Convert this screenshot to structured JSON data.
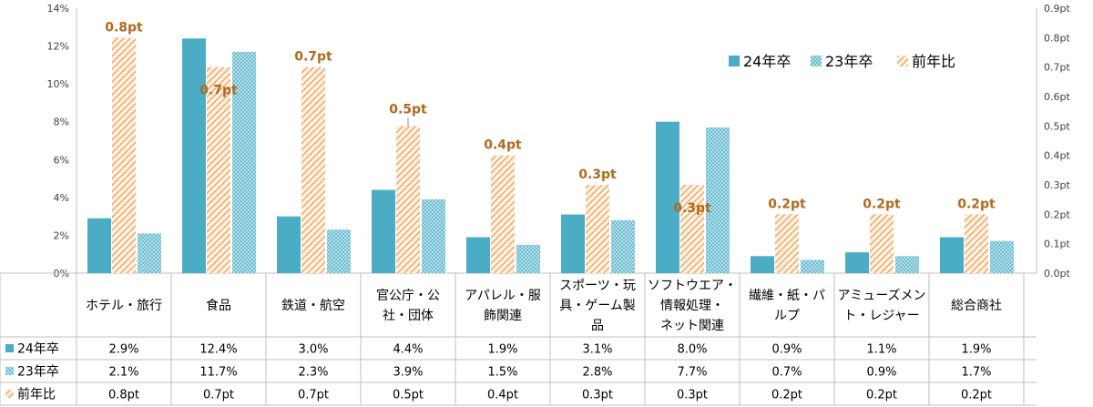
{
  "chart_data": {
    "type": "bar",
    "categories": [
      [
        "ホテル・旅行"
      ],
      [
        "食品"
      ],
      [
        "鉄道・航空"
      ],
      [
        "官公庁・公",
        "社・団体"
      ],
      [
        "アパレル・服",
        "飾関連"
      ],
      [
        "スポーツ・玩",
        "具・ゲーム製",
        "品"
      ],
      [
        "ソフトウエア・",
        "情報処理・",
        "ネット関連"
      ],
      [
        "繊維・紙・パ",
        "ルプ"
      ],
      [
        "アミューズメン",
        "ト・レジャー"
      ],
      [
        "総合商社"
      ]
    ],
    "series": [
      {
        "name": "24年卒",
        "axis": "left",
        "values": [
          2.9,
          12.4,
          3.0,
          4.4,
          1.9,
          3.1,
          8.0,
          0.9,
          1.1,
          1.9
        ],
        "labels": [
          "2.9%",
          "12.4%",
          "3.0%",
          "4.4%",
          "1.9%",
          "3.1%",
          "8.0%",
          "0.9%",
          "1.1%",
          "1.9%"
        ],
        "color": "#4bacc6"
      },
      {
        "name": "23年卒",
        "axis": "left",
        "values": [
          2.1,
          11.7,
          2.3,
          3.9,
          1.5,
          2.8,
          7.7,
          0.7,
          0.9,
          1.7
        ],
        "labels": [
          "2.1%",
          "11.7%",
          "2.3%",
          "3.9%",
          "1.5%",
          "2.8%",
          "7.7%",
          "0.7%",
          "0.9%",
          "1.7%"
        ],
        "color": "#93cddd"
      },
      {
        "name": "前年比",
        "axis": "right",
        "values": [
          0.8,
          0.7,
          0.7,
          0.5,
          0.4,
          0.3,
          0.3,
          0.2,
          0.2,
          0.2
        ],
        "labels": [
          "0.8pt",
          "0.7pt",
          "0.7pt",
          "0.5pt",
          "0.4pt",
          "0.3pt",
          "0.3pt",
          "0.2pt",
          "0.2pt",
          "0.2pt"
        ],
        "color": "#f79646"
      }
    ],
    "yleft": {
      "min": 0,
      "max": 14,
      "step": 2,
      "ticks": [
        "0%",
        "2%",
        "4%",
        "6%",
        "8%",
        "10%",
        "12%",
        "14%"
      ]
    },
    "yright": {
      "min": 0,
      "max": 0.9,
      "step": 0.1,
      "ticks": [
        "0.0pt",
        "0.1pt",
        "0.2pt",
        "0.3pt",
        "0.4pt",
        "0.5pt",
        "0.6pt",
        "0.7pt",
        "0.8pt",
        "0.9pt"
      ]
    },
    "grid": false,
    "legend": "top-right",
    "data_table": true
  }
}
